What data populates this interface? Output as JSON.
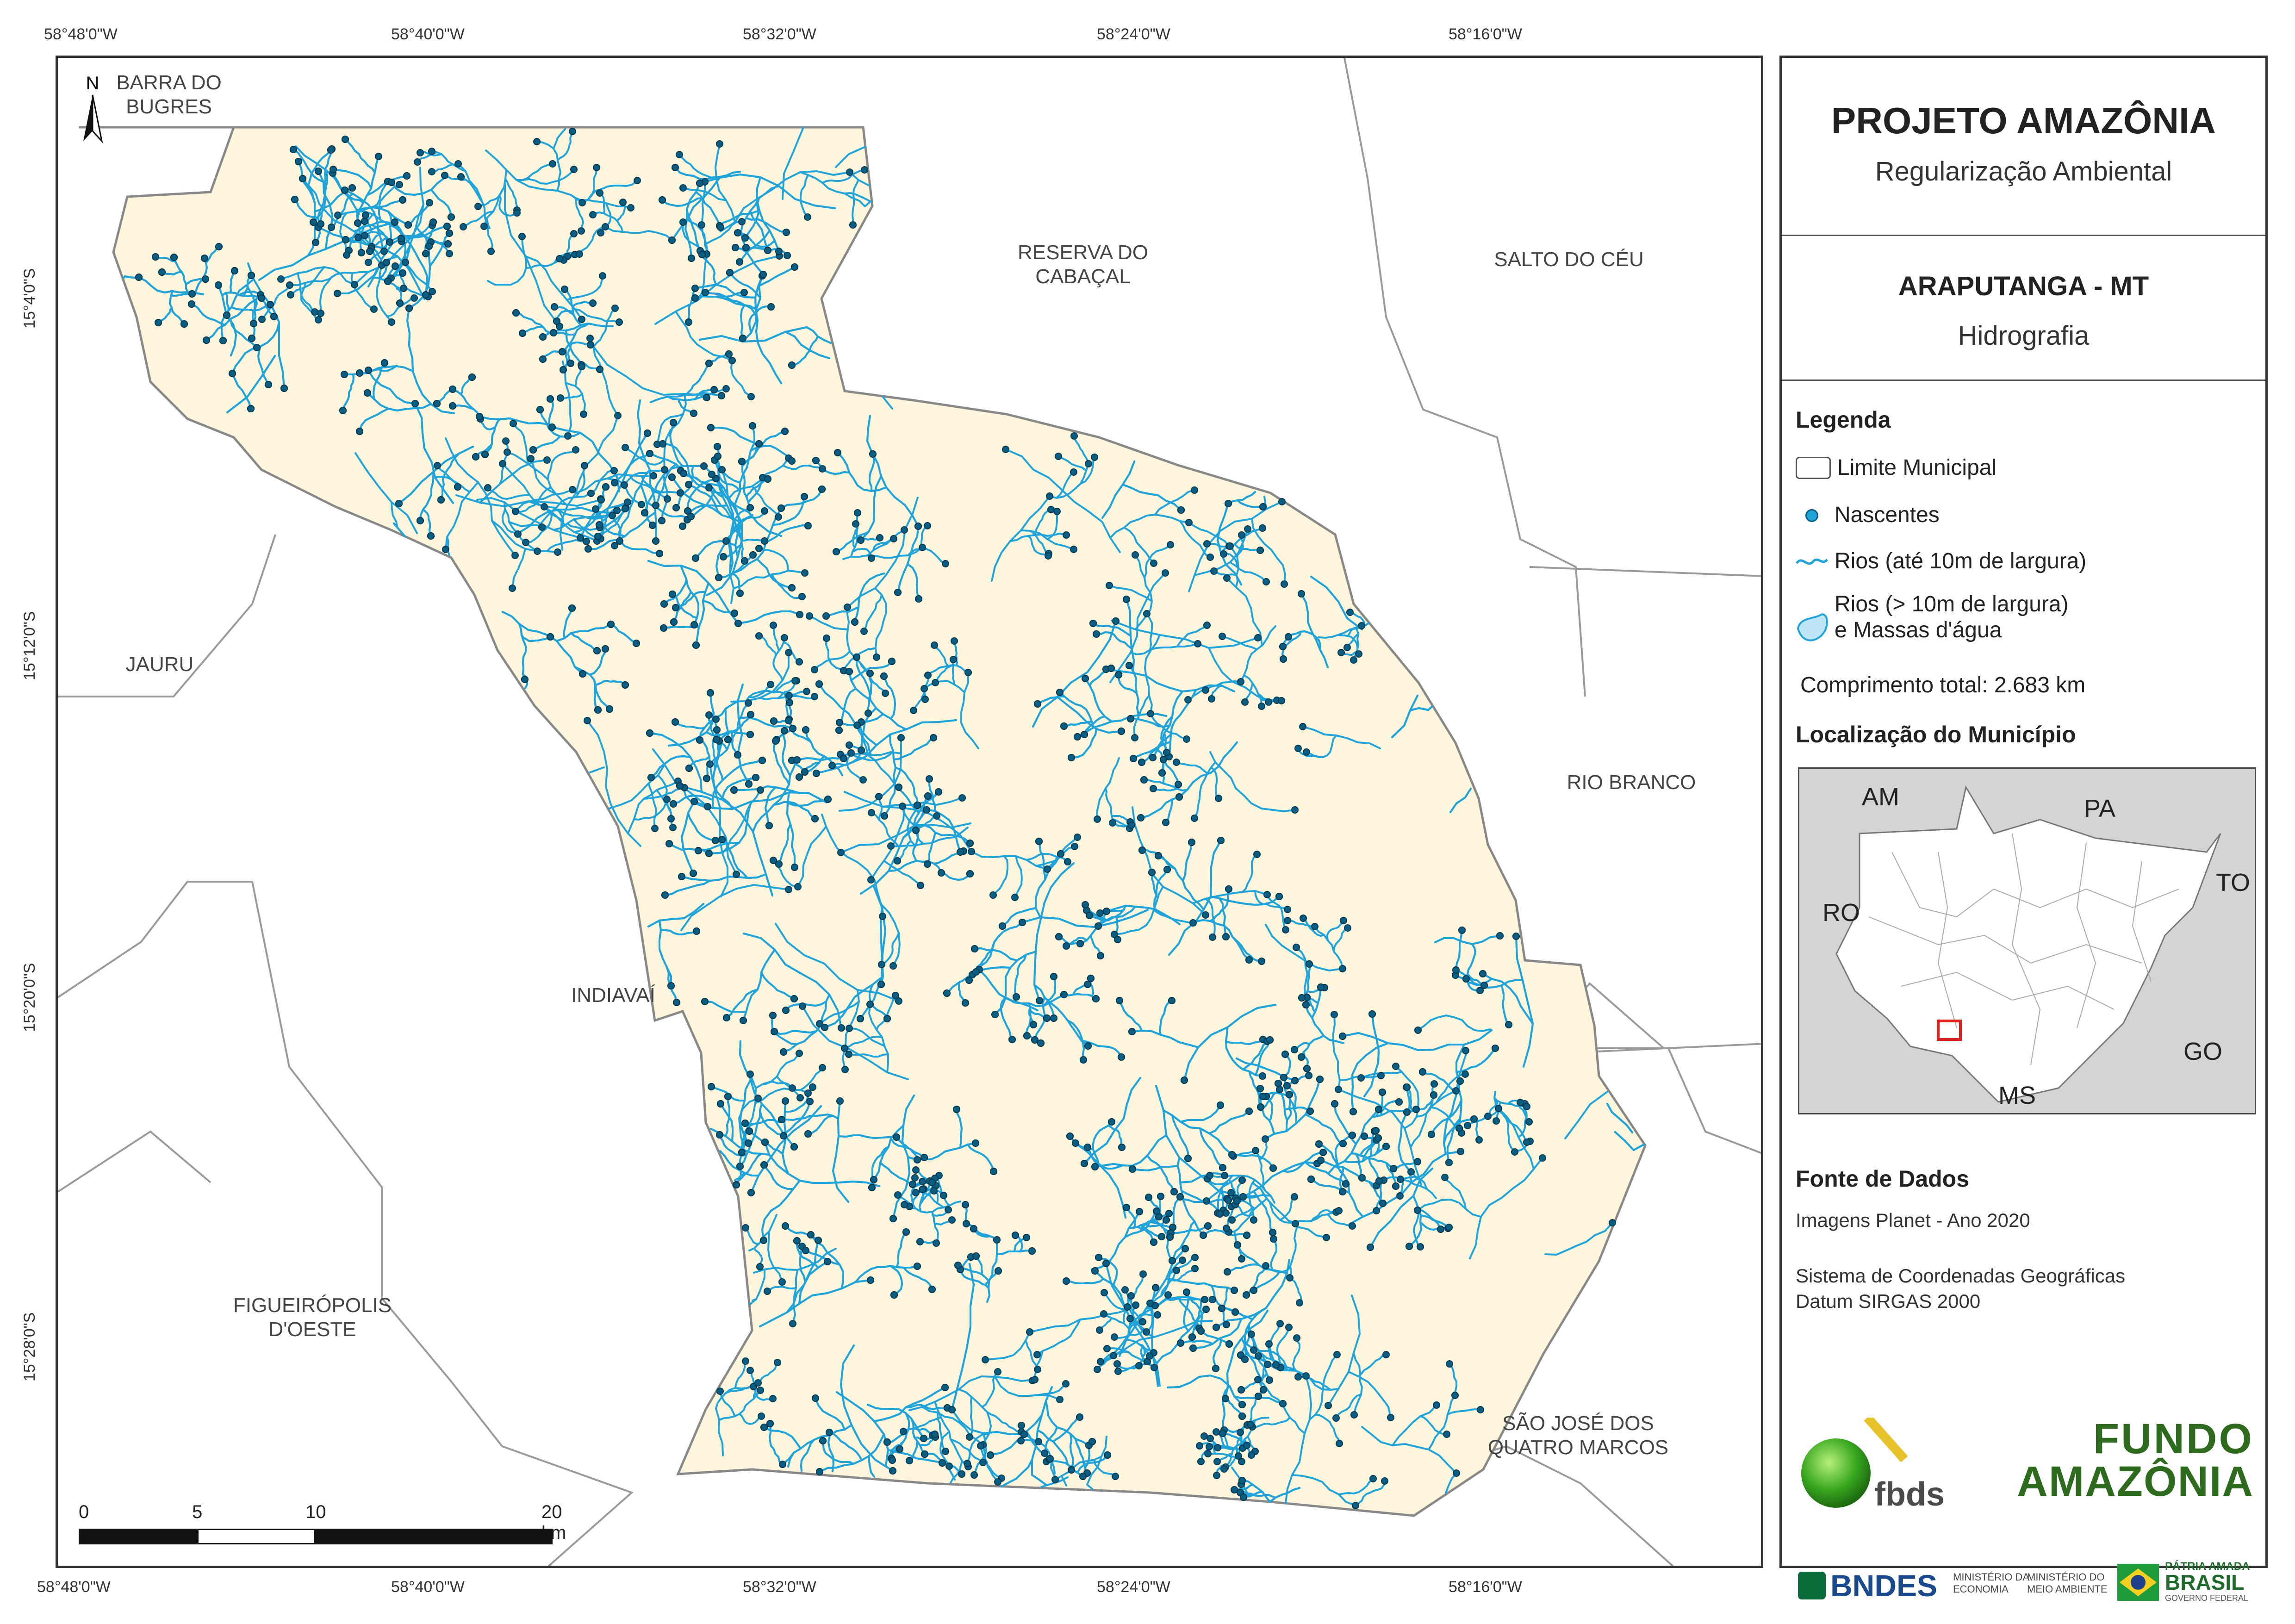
{
  "map": {
    "coords_top": [
      "58°48'0\"W",
      "58°40'0\"W",
      "58°32'0\"W",
      "58°24'0\"W",
      "58°16'0\"W"
    ],
    "coords_bottom": [
      "58°48'0\"W",
      "58°40'0\"W",
      "58°32'0\"W",
      "58°24'0\"W",
      "58°16'0\"W"
    ],
    "coords_left": [
      "15°4'0\"S",
      "15°12'0\"S",
      "15°20'0\"S",
      "15°28'0\"S"
    ],
    "north_label": "N",
    "municipalities": {
      "barra": "BARRA DO\nBUGRES",
      "reserva": "RESERVA DO\nCABAÇAL",
      "salto": "SALTO DO CÉU",
      "jauru": "JAURU",
      "rio_branco": "RIO BRANCO",
      "indiavai": "INDIAVAÍ",
      "figueiropolis": "FIGUEIRÓPOLIS\nD'OESTE",
      "sao_jose": "SÃO JOSÉ DOS\nQUATRO MARCOS"
    },
    "scale_labels": [
      "0",
      "5",
      "10",
      "20 km"
    ]
  },
  "panel": {
    "title": "PROJETO AMAZÔNIA",
    "subtitle": "Regularização Ambiental",
    "municipality": "ARAPUTANGA - MT",
    "theme": "Hidrografia",
    "legend_title": "Legenda",
    "legend": {
      "limite": "Limite Municipal",
      "nascentes": "Nascentes",
      "rios_small": "Rios (até 10m de largura)",
      "rios_big_1": "Rios (> 10m de largura)",
      "rios_big_2": "e Massas d'água"
    },
    "total_length": "Comprimento total: 2.683 km",
    "location_title": "Localização do Município",
    "inset_labels": {
      "am": "AM",
      "pa": "PA",
      "to": "TO",
      "ro": "RO",
      "go": "GO",
      "ms": "MS"
    },
    "source_title": "Fonte de Dados",
    "source_1": "Imagens Planet - Ano 2020",
    "source_2": "Sistema de Coordenadas Geográficas",
    "source_3": "Datum SIRGAS 2000",
    "logos": {
      "fbds": "fbds",
      "fundo_1": "FUNDO",
      "fundo_2": "AMAZÔNIA",
      "bndes": "BNDES",
      "min_economia_1": "MINISTÉRIO DA",
      "min_economia_2": "ECONOMIA",
      "min_ambiente_1": "MINISTÉRIO DO",
      "min_ambiente_2": "MEIO AMBIENTE",
      "patria": "PÁTRIA AMADA",
      "brasil": "BRASIL",
      "governo": "GOVERNO FEDERAL"
    }
  },
  "colors": {
    "municipality_fill": "#fdf5dc",
    "river": "#1fa3d9",
    "spring": "#0b5d82",
    "border": "#888888",
    "highlight": "#e02020"
  }
}
